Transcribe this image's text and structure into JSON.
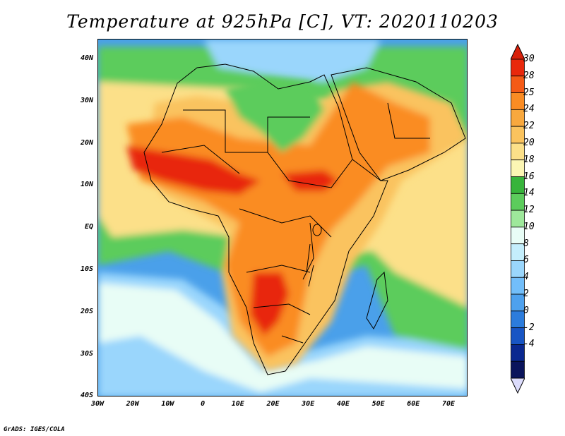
{
  "title": "Temperature at 925hPa [C], VT: 2020110203",
  "credit": "GrADS: IGES/COLA",
  "lat_labels": [
    "40N",
    "30N",
    "20N",
    "10N",
    "EQ",
    "10S",
    "20S",
    "30S",
    "40S"
  ],
  "lon_labels": [
    "30W",
    "20W",
    "10W",
    "0",
    "10E",
    "20E",
    "30E",
    "40E",
    "50E",
    "60E",
    "70E"
  ],
  "legend": {
    "labels": [
      "30",
      "28",
      "25",
      "24",
      "22",
      "20",
      "18",
      "16",
      "14",
      "12",
      "10",
      "8",
      "6",
      "4",
      "2",
      "0",
      "-2",
      "-4"
    ],
    "colors": [
      "#e8280c",
      "#f45a16",
      "#fa8c24",
      "#f8a83e",
      "#fac35e",
      "#fce089",
      "#fcf6b4",
      "#37b43b",
      "#5ccc5c",
      "#9ee89b",
      "#e8fdf6",
      "#c4eefc",
      "#9ad6fc",
      "#72befa",
      "#4ea1ee",
      "#2c7cdc",
      "#1855c4",
      "#0a2890",
      "#0a145c"
    ],
    "top_arrow_color": "#d8200a",
    "bottom_arrow_color": "#dcdcfc"
  },
  "colors": {
    "ocean_cold": "#4aa0ea",
    "ocean_cool": "#9ad6fc",
    "ocean_mild": "#e8fdf6",
    "ocean_warm": "#5ccc5c",
    "ocean_tropical": "#fce089",
    "land_hot": "#e8280c",
    "land_warm": "#fa8c24",
    "land_mild": "#fac35e",
    "boundaries": "#000000"
  }
}
